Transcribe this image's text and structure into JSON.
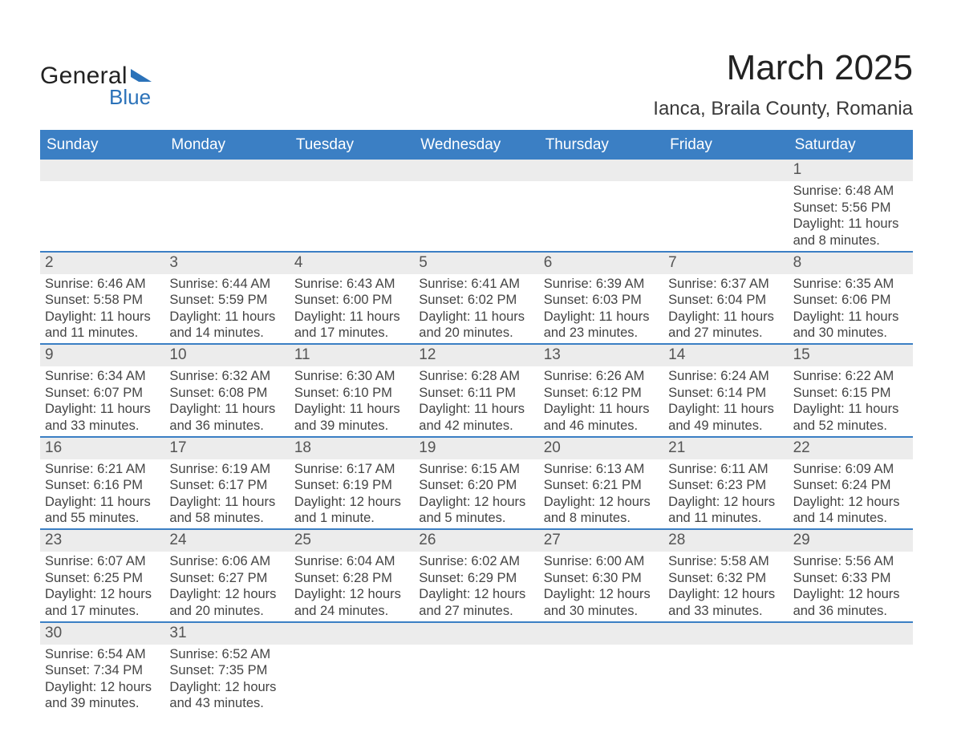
{
  "colors": {
    "header_bg": "#3b7fc4",
    "header_text": "#ffffff",
    "daynum_bg": "#ececec",
    "daynum_text": "#555555",
    "body_text": "#444444",
    "divider": "#3b7fc4",
    "page_bg": "#ffffff",
    "logo_accent": "#2b72b9"
  },
  "typography": {
    "title_fontsize_pt": 33,
    "subtitle_fontsize_pt": 18,
    "dow_fontsize_pt": 14,
    "daynum_fontsize_pt": 14,
    "detail_fontsize_pt": 12,
    "font_family": "Arial"
  },
  "logo": {
    "line1": "General",
    "line2": "Blue"
  },
  "title": {
    "month": "March 2025",
    "location": "Ianca, Braila County, Romania"
  },
  "days_of_week": [
    "Sunday",
    "Monday",
    "Tuesday",
    "Wednesday",
    "Thursday",
    "Friday",
    "Saturday"
  ],
  "calendar": {
    "lead_blanks": 6,
    "days": [
      {
        "n": "1",
        "sunrise": "Sunrise: 6:48 AM",
        "sunset": "Sunset: 5:56 PM",
        "d1": "Daylight: 11 hours",
        "d2": "and 8 minutes."
      },
      {
        "n": "2",
        "sunrise": "Sunrise: 6:46 AM",
        "sunset": "Sunset: 5:58 PM",
        "d1": "Daylight: 11 hours",
        "d2": "and 11 minutes."
      },
      {
        "n": "3",
        "sunrise": "Sunrise: 6:44 AM",
        "sunset": "Sunset: 5:59 PM",
        "d1": "Daylight: 11 hours",
        "d2": "and 14 minutes."
      },
      {
        "n": "4",
        "sunrise": "Sunrise: 6:43 AM",
        "sunset": "Sunset: 6:00 PM",
        "d1": "Daylight: 11 hours",
        "d2": "and 17 minutes."
      },
      {
        "n": "5",
        "sunrise": "Sunrise: 6:41 AM",
        "sunset": "Sunset: 6:02 PM",
        "d1": "Daylight: 11 hours",
        "d2": "and 20 minutes."
      },
      {
        "n": "6",
        "sunrise": "Sunrise: 6:39 AM",
        "sunset": "Sunset: 6:03 PM",
        "d1": "Daylight: 11 hours",
        "d2": "and 23 minutes."
      },
      {
        "n": "7",
        "sunrise": "Sunrise: 6:37 AM",
        "sunset": "Sunset: 6:04 PM",
        "d1": "Daylight: 11 hours",
        "d2": "and 27 minutes."
      },
      {
        "n": "8",
        "sunrise": "Sunrise: 6:35 AM",
        "sunset": "Sunset: 6:06 PM",
        "d1": "Daylight: 11 hours",
        "d2": "and 30 minutes."
      },
      {
        "n": "9",
        "sunrise": "Sunrise: 6:34 AM",
        "sunset": "Sunset: 6:07 PM",
        "d1": "Daylight: 11 hours",
        "d2": "and 33 minutes."
      },
      {
        "n": "10",
        "sunrise": "Sunrise: 6:32 AM",
        "sunset": "Sunset: 6:08 PM",
        "d1": "Daylight: 11 hours",
        "d2": "and 36 minutes."
      },
      {
        "n": "11",
        "sunrise": "Sunrise: 6:30 AM",
        "sunset": "Sunset: 6:10 PM",
        "d1": "Daylight: 11 hours",
        "d2": "and 39 minutes."
      },
      {
        "n": "12",
        "sunrise": "Sunrise: 6:28 AM",
        "sunset": "Sunset: 6:11 PM",
        "d1": "Daylight: 11 hours",
        "d2": "and 42 minutes."
      },
      {
        "n": "13",
        "sunrise": "Sunrise: 6:26 AM",
        "sunset": "Sunset: 6:12 PM",
        "d1": "Daylight: 11 hours",
        "d2": "and 46 minutes."
      },
      {
        "n": "14",
        "sunrise": "Sunrise: 6:24 AM",
        "sunset": "Sunset: 6:14 PM",
        "d1": "Daylight: 11 hours",
        "d2": "and 49 minutes."
      },
      {
        "n": "15",
        "sunrise": "Sunrise: 6:22 AM",
        "sunset": "Sunset: 6:15 PM",
        "d1": "Daylight: 11 hours",
        "d2": "and 52 minutes."
      },
      {
        "n": "16",
        "sunrise": "Sunrise: 6:21 AM",
        "sunset": "Sunset: 6:16 PM",
        "d1": "Daylight: 11 hours",
        "d2": "and 55 minutes."
      },
      {
        "n": "17",
        "sunrise": "Sunrise: 6:19 AM",
        "sunset": "Sunset: 6:17 PM",
        "d1": "Daylight: 11 hours",
        "d2": "and 58 minutes."
      },
      {
        "n": "18",
        "sunrise": "Sunrise: 6:17 AM",
        "sunset": "Sunset: 6:19 PM",
        "d1": "Daylight: 12 hours",
        "d2": "and 1 minute."
      },
      {
        "n": "19",
        "sunrise": "Sunrise: 6:15 AM",
        "sunset": "Sunset: 6:20 PM",
        "d1": "Daylight: 12 hours",
        "d2": "and 5 minutes."
      },
      {
        "n": "20",
        "sunrise": "Sunrise: 6:13 AM",
        "sunset": "Sunset: 6:21 PM",
        "d1": "Daylight: 12 hours",
        "d2": "and 8 minutes."
      },
      {
        "n": "21",
        "sunrise": "Sunrise: 6:11 AM",
        "sunset": "Sunset: 6:23 PM",
        "d1": "Daylight: 12 hours",
        "d2": "and 11 minutes."
      },
      {
        "n": "22",
        "sunrise": "Sunrise: 6:09 AM",
        "sunset": "Sunset: 6:24 PM",
        "d1": "Daylight: 12 hours",
        "d2": "and 14 minutes."
      },
      {
        "n": "23",
        "sunrise": "Sunrise: 6:07 AM",
        "sunset": "Sunset: 6:25 PM",
        "d1": "Daylight: 12 hours",
        "d2": "and 17 minutes."
      },
      {
        "n": "24",
        "sunrise": "Sunrise: 6:06 AM",
        "sunset": "Sunset: 6:27 PM",
        "d1": "Daylight: 12 hours",
        "d2": "and 20 minutes."
      },
      {
        "n": "25",
        "sunrise": "Sunrise: 6:04 AM",
        "sunset": "Sunset: 6:28 PM",
        "d1": "Daylight: 12 hours",
        "d2": "and 24 minutes."
      },
      {
        "n": "26",
        "sunrise": "Sunrise: 6:02 AM",
        "sunset": "Sunset: 6:29 PM",
        "d1": "Daylight: 12 hours",
        "d2": "and 27 minutes."
      },
      {
        "n": "27",
        "sunrise": "Sunrise: 6:00 AM",
        "sunset": "Sunset: 6:30 PM",
        "d1": "Daylight: 12 hours",
        "d2": "and 30 minutes."
      },
      {
        "n": "28",
        "sunrise": "Sunrise: 5:58 AM",
        "sunset": "Sunset: 6:32 PM",
        "d1": "Daylight: 12 hours",
        "d2": "and 33 minutes."
      },
      {
        "n": "29",
        "sunrise": "Sunrise: 5:56 AM",
        "sunset": "Sunset: 6:33 PM",
        "d1": "Daylight: 12 hours",
        "d2": "and 36 minutes."
      },
      {
        "n": "30",
        "sunrise": "Sunrise: 6:54 AM",
        "sunset": "Sunset: 7:34 PM",
        "d1": "Daylight: 12 hours",
        "d2": "and 39 minutes."
      },
      {
        "n": "31",
        "sunrise": "Sunrise: 6:52 AM",
        "sunset": "Sunset: 7:35 PM",
        "d1": "Daylight: 12 hours",
        "d2": "and 43 minutes."
      }
    ]
  }
}
